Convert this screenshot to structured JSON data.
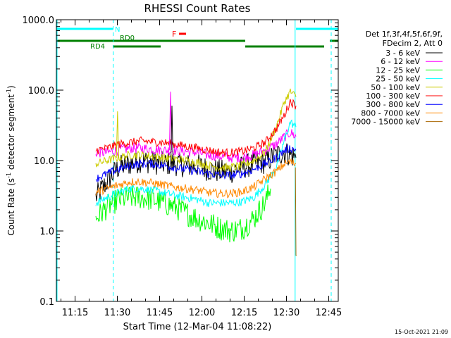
{
  "chart_data": {
    "type": "line",
    "title": "RHESSI Count Rates",
    "xlabel": "Start Time (12-Mar-04 11:08:22)",
    "ylabel_parts": [
      "Count Rate (s",
      "-1",
      " detector segment",
      "-1",
      ")"
    ],
    "yscale": "log",
    "ylim": [
      0.1,
      1000
    ],
    "xlim_minutes": [
      0,
      100
    ],
    "x_ticks": [
      "11:15",
      "11:30",
      "11:45",
      "12:00",
      "12:15",
      "12:30",
      "12:45"
    ],
    "x_tick_minutes": [
      6.63,
      21.63,
      36.63,
      51.63,
      66.63,
      81.63,
      96.63
    ],
    "y_ticks": [
      "0.1",
      "1.0",
      "10.0",
      "100.0",
      "1000.0"
    ],
    "y_tick_values": [
      0.1,
      1,
      10,
      100,
      1000
    ],
    "legend_header": [
      "Det 1f,3f,4f,5f,6f,9f,",
      "FDecim 2, Att 0"
    ],
    "legend_position": "right",
    "timestamp": "15-Oct-2021 21:09",
    "series": [
      {
        "name": "3 - 6 keV",
        "color": "#000000",
        "x": [
          14,
          18,
          22,
          26,
          30,
          34,
          38,
          42,
          46,
          50,
          54,
          58,
          62,
          66,
          70,
          74,
          78,
          81,
          83,
          85
        ],
        "y": [
          3,
          5,
          8,
          9,
          10,
          9.5,
          9,
          9,
          8.5,
          8.5,
          7.5,
          7,
          7,
          8,
          9,
          9.5,
          12,
          13,
          12,
          11
        ]
      },
      {
        "name": "6 - 12 keV",
        "color": "#ff00ff",
        "x": [
          14,
          18,
          22,
          26,
          30,
          34,
          38,
          42,
          46,
          50,
          54,
          58,
          62,
          66,
          70,
          74,
          78,
          81,
          83,
          85
        ],
        "y": [
          13,
          13,
          14,
          15,
          15,
          14.5,
          14,
          14,
          13.5,
          13,
          12,
          11.5,
          11,
          11,
          12,
          14,
          17,
          22,
          25,
          22
        ]
      },
      {
        "name": "12 - 25 keV",
        "color": "#00ff00",
        "x": [
          14,
          18,
          22,
          26,
          30,
          34,
          38,
          42,
          46,
          50,
          54,
          58,
          62,
          66,
          70,
          74,
          76
        ],
        "y": [
          1.5,
          2.2,
          2.8,
          3.0,
          3.0,
          2.8,
          2.5,
          2.2,
          1.8,
          1.5,
          1.3,
          1.1,
          1.0,
          1.1,
          1.5,
          2.5,
          4
        ]
      },
      {
        "name": "25 - 50 keV",
        "color": "#00ffff",
        "x": [
          14,
          18,
          22,
          26,
          30,
          34,
          38,
          42,
          46,
          50,
          54,
          58,
          62,
          66,
          70,
          74,
          78,
          81,
          83,
          85
        ],
        "y": [
          2.5,
          3.0,
          3.5,
          4.0,
          4.0,
          3.8,
          3.5,
          3.2,
          3.0,
          2.8,
          2.5,
          2.5,
          2.5,
          2.6,
          3.0,
          4.5,
          8,
          20,
          35,
          30
        ]
      },
      {
        "name": "50 - 100 keV",
        "color": "#cccc00",
        "x": [
          14,
          18,
          22,
          26,
          30,
          34,
          38,
          42,
          46,
          50,
          54,
          58,
          62,
          66,
          70,
          74,
          78,
          81,
          83,
          85
        ],
        "y": [
          9,
          10,
          11,
          12,
          12,
          11.5,
          11,
          10.5,
          10,
          9.5,
          8.5,
          8,
          8,
          8.5,
          10,
          13,
          30,
          70,
          95,
          80
        ]
      },
      {
        "name": "100 - 300 keV",
        "color": "#ff0000",
        "x": [
          14,
          18,
          22,
          26,
          30,
          34,
          38,
          42,
          46,
          50,
          54,
          58,
          62,
          66,
          70,
          74,
          78,
          81,
          83,
          85
        ],
        "y": [
          14,
          15,
          17,
          18,
          19,
          18.5,
          18,
          17,
          16,
          15,
          14,
          13,
          13,
          13.5,
          15,
          18,
          28,
          45,
          70,
          60
        ]
      },
      {
        "name": "300 - 800 keV",
        "color": "#0000ff",
        "x": [
          14,
          18,
          22,
          26,
          30,
          34,
          38,
          42,
          46,
          50,
          54,
          58,
          62,
          66,
          70,
          74,
          78,
          81,
          83,
          85
        ],
        "y": [
          5.5,
          6.5,
          7.5,
          8.5,
          9,
          9,
          8.5,
          8,
          7.5,
          7,
          6.5,
          6.2,
          6.2,
          6.5,
          7.5,
          9,
          11,
          14,
          15,
          14
        ]
      },
      {
        "name": "800 - 7000 keV",
        "color": "#ff8800",
        "x": [
          14,
          18,
          22,
          26,
          30,
          34,
          38,
          42,
          46,
          50,
          54,
          58,
          62,
          66,
          70,
          74,
          78,
          81,
          83,
          85
        ],
        "y": [
          3.5,
          4.0,
          4.5,
          5.0,
          5.0,
          4.8,
          4.5,
          4.2,
          4.0,
          3.8,
          3.5,
          3.4,
          3.4,
          3.6,
          4.2,
          5.5,
          7,
          9,
          9.5,
          9
        ]
      },
      {
        "name": "7000 - 15000 keV",
        "color": "#aa6600",
        "x": [
          84.8,
          85.0,
          85.2
        ],
        "y": [
          8,
          0.45,
          0.45
        ]
      }
    ],
    "spikes": [
      {
        "x": 21.7,
        "series": "50 - 100 keV",
        "y": 50
      },
      {
        "x": 40.5,
        "series": "6 - 12 keV",
        "y": 95
      },
      {
        "x": 41.0,
        "series": "3 - 6 keV",
        "y": 60
      }
    ],
    "state_bars": {
      "N": {
        "label": "N",
        "color": "#00ffff",
        "ranges": [
          [
            0,
            20
          ],
          [
            85,
            100
          ]
        ]
      },
      "RD": {
        "labels": [
          "RD0",
          "RD4"
        ],
        "color": "#008000",
        "ranges": [
          [
            0,
            37
          ],
          [
            37,
            67
          ],
          [
            67,
            95
          ],
          [
            97,
            100
          ]
        ]
      },
      "F": {
        "label": "F",
        "color": "#ff0000",
        "ranges": [
          [
            43.5,
            46
          ]
        ]
      }
    },
    "vertical_markers": [
      {
        "x": 20.2,
        "color": "#00ffff",
        "style": "dashed"
      },
      {
        "x": 84.7,
        "color": "#00ffff",
        "style": "solid"
      },
      {
        "x": 97.5,
        "color": "#00ffff",
        "style": "dashed"
      }
    ]
  }
}
